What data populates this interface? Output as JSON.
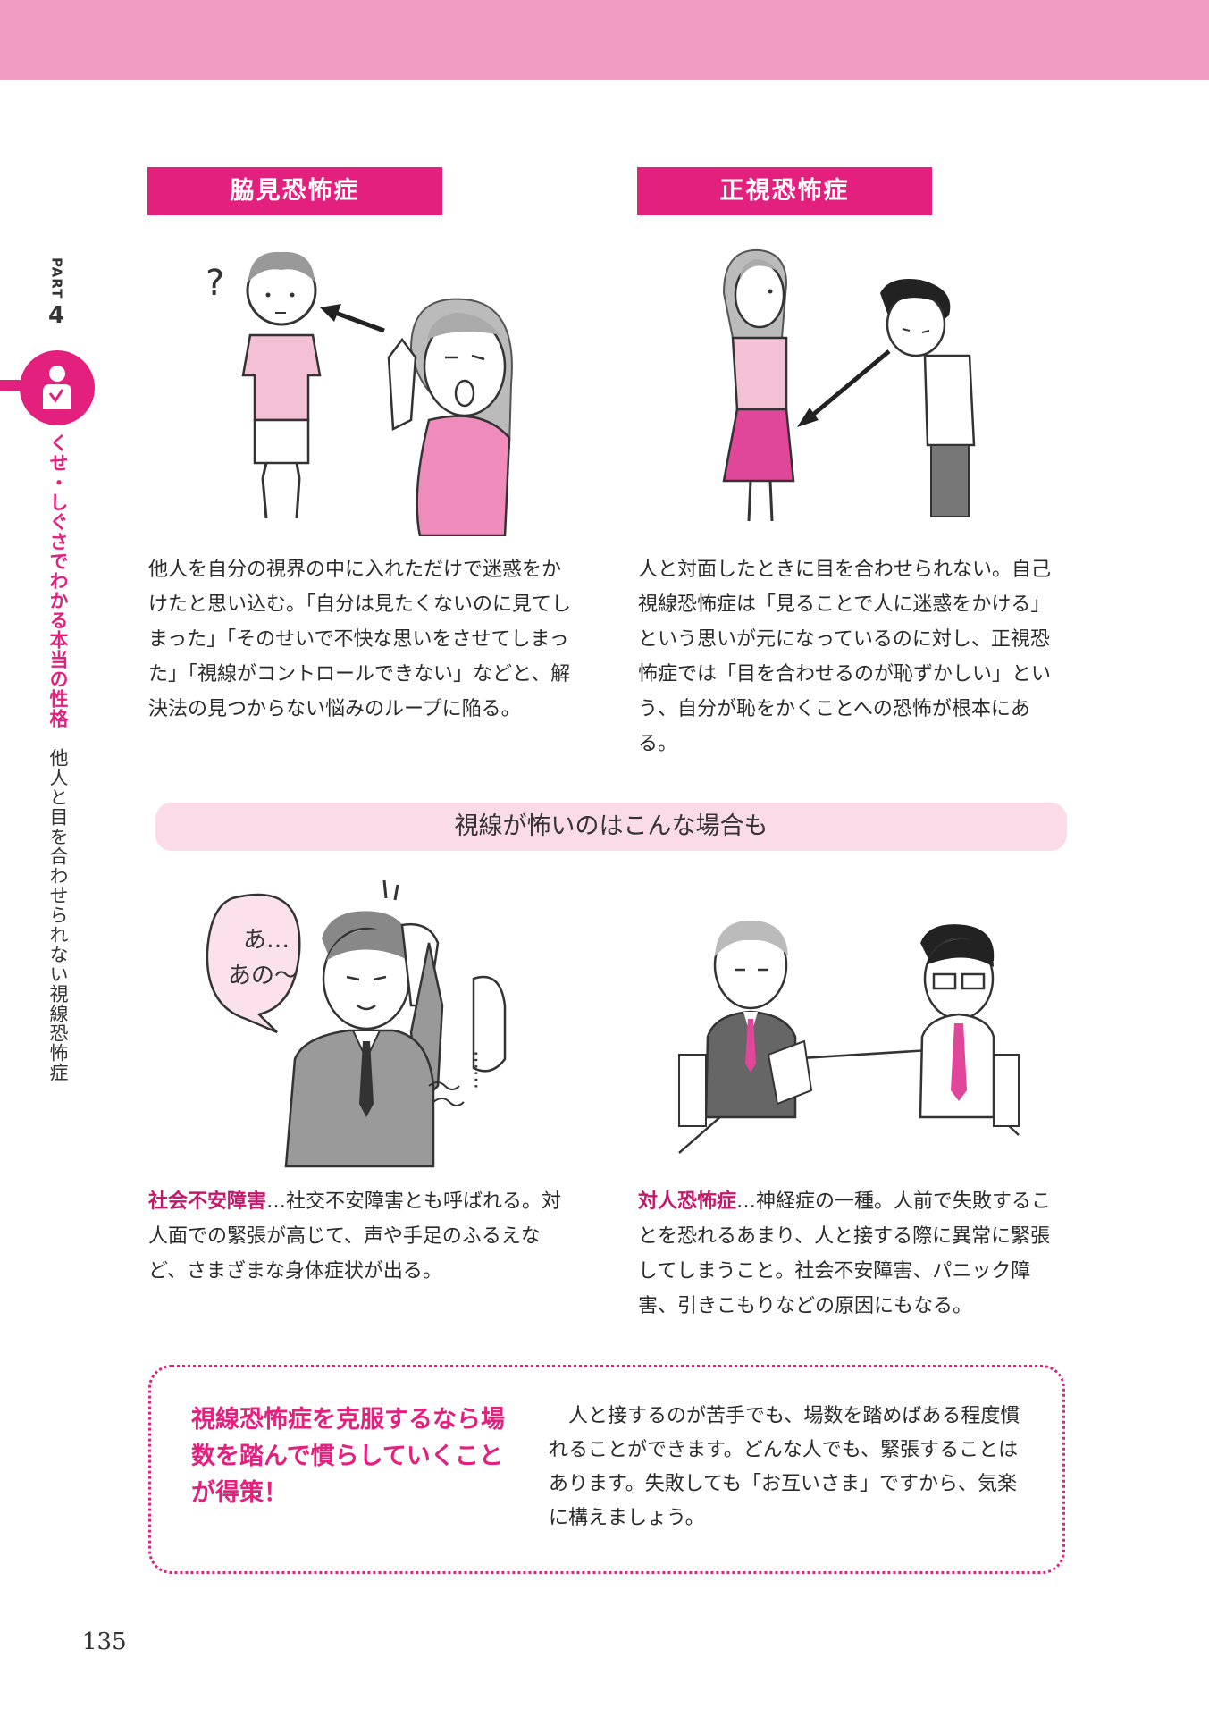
{
  "side": {
    "part_label": "PART",
    "part_number": "4",
    "chapter_title": "くせ・しぐさでわかる本当の性格",
    "section_title": "他人と目を合わせられない視線恐怖症"
  },
  "left_section": {
    "title": "脇見恐怖症",
    "text": "他人を自分の視界の中に入れただけで迷惑をかけたと思い込む。「自分は見たくないのに見てしまった」「そのせいで不快な思いをさせてしまった」「視線がコントロールできない」などと、解決法の見つからない悩みのループに陥る。"
  },
  "right_section": {
    "title": "正視恐怖症",
    "text": "人と対面したときに目を合わせられない。自己視線恐怖症は「見ることで人に迷惑をかける」という思いが元になっているのに対し、正視恐怖症では「目を合わせるのが恥ずかしい」という、自分が恥をかくことへの恐怖が根本にある。"
  },
  "mid_banner": "視線が怖いのはこんな場合も",
  "illustration_left_bottom": {
    "speech1": "あ…",
    "speech2": "あの〜",
    "speech3": "……"
  },
  "social_anxiety": {
    "term": "社会不安障害",
    "text": "…社交不安障害とも呼ばれる。対人面での緊張が高じて、声や手足のふるえなど、さまざまな身体症状が出る。"
  },
  "anthropophobia": {
    "term": "対人恐怖症",
    "text": "…神経症の一種。人前で失敗することを恐れるあまり、人と接する際に異常に緊張してしまうこと。社会不安障害、パニック障害、引きこもりなどの原因にもなる。"
  },
  "tip": {
    "heading": "視線恐怖症を克服するなら場数を踏んで慣らしていくことが得策！",
    "body": "　人と接するのが苦手でも、場数を踏めばある程度慣れることができます。どんな人でも、緊張することはあります。失敗しても「お互いさま」ですから、気楽に構えましょう。"
  },
  "page_number": "135",
  "colors": {
    "accent": "#e3207e",
    "band": "#f09dc1",
    "banner": "#fbdbe8"
  }
}
